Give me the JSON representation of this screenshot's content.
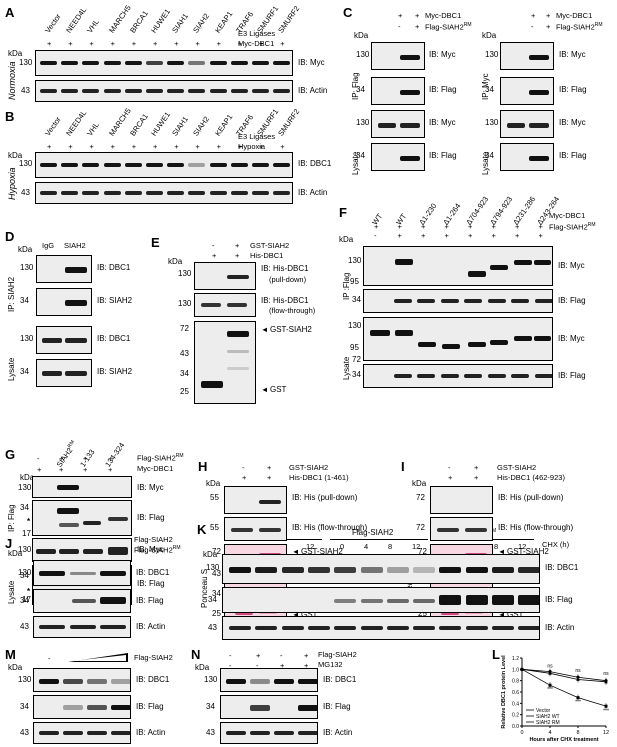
{
  "panels": {
    "A": "A",
    "B": "B",
    "C": "C",
    "D": "D",
    "E": "E",
    "F": "F",
    "G": "G",
    "H": "H",
    "I": "I",
    "J": "J",
    "K": "K",
    "L": "L",
    "M": "M",
    "N": "N"
  },
  "mw": {
    "130": "130",
    "72": "72",
    "55": "55",
    "43": "43",
    "34": "34",
    "25": "25",
    "17": "17",
    "95": "95",
    "kda": "kDa"
  },
  "sym": {
    "plus": "+",
    "minus": "-",
    "star": "*",
    "arrow": "◄"
  },
  "a": {
    "ligases": [
      "Vector",
      "NEED4L",
      "VHL",
      "MARCH5",
      "BRCA1",
      "HUWE1",
      "SIAH1",
      "SIAH2",
      "KEAP1",
      "TRAF6",
      "SMURF1",
      "SMURF2"
    ],
    "e3": "E3 Ligases",
    "myc_dbc1": "Myc-DBC1",
    "cond": "Normoxia",
    "ib_myc": "IB: Myc",
    "ib_actin": "IB: Actin"
  },
  "b": {
    "e3": "E3 Ligases",
    "hypoxia": "Hypoxia",
    "cond": "Hypoxia",
    "ib_dbc1": "IB: DBC1",
    "ib_actin": "IB: Actin"
  },
  "c": {
    "myc_dbc1": "Myc-DBC1",
    "flag_siah2": "Flag-SIAH2",
    "rm": "RM",
    "ip_flag": "IP: Flag",
    "ip_myc": "IP: Myc",
    "lysate": "Lysate",
    "ib_myc": "IB: Myc",
    "ib_flag": "IB: Flag"
  },
  "d": {
    "igg": "IgG",
    "siah2": "SIAH2",
    "ip": "IP: SIAH2",
    "lysate": "Lysate",
    "ib_dbc1": "IB: DBC1",
    "ib_siah2": "IB: SIAH2"
  },
  "e": {
    "gst_siah2": "GST-SIAH2",
    "his_dbc1": "His-DBC1",
    "ib1": "IB: His-DBC1",
    "ib1b": "(pull-down)",
    "ib2": "IB: His-DBC1",
    "ib2b": "(flow-through)",
    "gst_siah2_label": "GST-SIAH2",
    "gst_label": "GST"
  },
  "f": {
    "constructs": [
      "WT",
      "WT",
      "Δ1-230",
      "Δ1-264",
      "Δ704-923",
      "Δ794-923",
      "Δ231-286",
      "Δ243-264"
    ],
    "myc_dbc1": "Myc-DBC1",
    "flag_siah2": "Flag-SIAH2",
    "rm": "RM",
    "ip": "IP :Flag",
    "lysate": "Lysate",
    "ib_myc": "IB: Myc",
    "ib_flag": "IB: Flag"
  },
  "g": {
    "constructs": [
      "SIAH2",
      "1-133",
      "134-324"
    ],
    "rm": "RM",
    "flag_siah2": "Flag-SIAH2",
    "myc_dbc1": "Myc-DBC1",
    "ip": "IP: Flag",
    "lysate": "Lysate",
    "ib_myc": "IB: Myc",
    "ib_flag": "IB: Flag"
  },
  "h": {
    "gst_siah2": "GST-SIAH2",
    "his": "His-DBC1 (1-461)",
    "ib1": "IB: His (pull-down)",
    "ib2": "IB: His (flow-through)",
    "ponceau": "Ponceau S",
    "gst_siah2_label": "GST-SIAH2",
    "gst_label": "GST"
  },
  "i": {
    "gst_siah2": "GST-SIAH2",
    "his": "His-DBC1 (462-923)",
    "ib1": "IB: His (pull-down)",
    "ib2": "IB: His (flow-through)",
    "ponceau": "Ponceau S",
    "gst_siah2_label": "GST-SIAH2",
    "gst_label": "GST"
  },
  "j": {
    "flag_siah2": "Flag-SIAH2",
    "flag_siah2rm": "Flag-SIAH2",
    "rm": "RM",
    "ib_dbc1": "IB: DBC1",
    "ib_flag": "IB: Flag",
    "ib_actin": "IB: Actin"
  },
  "k": {
    "groups": [
      "Vector",
      "Flag-SIAH2",
      "Flag-SIAH2"
    ],
    "rm": "RM",
    "times": [
      "0",
      "4",
      "8",
      "12"
    ],
    "chx": "CHX (h)",
    "ib_dbc1": "IB: DBC1",
    "ib_flag": "IB: Flag",
    "ib_actin": "IB: Actin"
  },
  "m": {
    "flag_siah2": "Flag-SIAH2",
    "ib_dbc1": "IB: DBC1",
    "ib_flag": "IB: Flag",
    "ib_actin": "IB: Actin"
  },
  "n": {
    "flag_siah2": "Flag-SIAH2",
    "mg132": "MG132",
    "ib_dbc1": "IB: DBC1",
    "ib_flag": "IB: Flag",
    "ib_actin": "IB: Actin"
  },
  "chart_data": {
    "type": "line",
    "xlabel": "Hours after CHX treatment",
    "ylabel": "Relative DBC1 protein Level",
    "x": [
      0,
      4,
      8,
      12
    ],
    "xticks": [
      "0",
      "4",
      "8",
      "12"
    ],
    "yticks": [
      "0.0",
      "0.2",
      "0.4",
      "0.6",
      "0.8",
      "1.0",
      "1.2"
    ],
    "ylim": [
      0,
      1.2
    ],
    "series": [
      {
        "name": "Vector",
        "values": [
          1.0,
          0.96,
          0.86,
          0.8
        ]
      },
      {
        "name": "SIAH2 WT",
        "values": [
          1.0,
          0.72,
          0.5,
          0.35
        ]
      },
      {
        "name": "SIAH2 RM",
        "values": [
          1.0,
          0.93,
          0.82,
          0.78
        ]
      }
    ],
    "annotations": [
      "ns",
      "ns",
      "ns",
      "***",
      "***",
      "***"
    ],
    "legend": "bottom-left"
  }
}
